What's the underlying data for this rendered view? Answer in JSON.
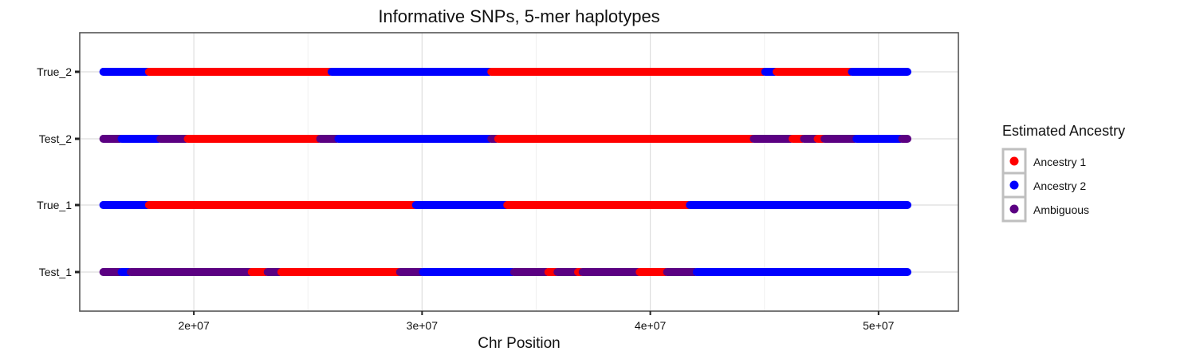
{
  "chart_data": {
    "type": "scatter",
    "title": "Informative SNPs, 5-mer haplotypes",
    "xlabel": "Chr Position",
    "ylabel": "",
    "xlim": [
      15000000,
      53500000
    ],
    "x_ticks": [
      20000000,
      30000000,
      40000000,
      50000000
    ],
    "x_tick_labels": [
      "2e+07",
      "3e+07",
      "4e+07",
      "5e+07"
    ],
    "categories": [
      "Test_1",
      "True_1",
      "Test_2",
      "True_2"
    ],
    "grid": true,
    "legend": {
      "title": "Estimated Ancestry",
      "placement": "right",
      "entries": [
        {
          "label": "Ancestry 1",
          "color": "#ff0000"
        },
        {
          "label": "Ancestry 2",
          "color": "#0000ff"
        },
        {
          "label": "Ambiguous",
          "color": "#5b0082"
        }
      ]
    },
    "series": [
      {
        "row": "True_2",
        "segments": [
          {
            "start": 16000000,
            "end": 18000000,
            "ancestry": "Ancestry 2"
          },
          {
            "start": 18000000,
            "end": 26000000,
            "ancestry": "Ancestry 1"
          },
          {
            "start": 26000000,
            "end": 33000000,
            "ancestry": "Ancestry 2"
          },
          {
            "start": 33000000,
            "end": 45000000,
            "ancestry": "Ancestry 1"
          },
          {
            "start": 45000000,
            "end": 45500000,
            "ancestry": "Ancestry 2"
          },
          {
            "start": 45500000,
            "end": 48800000,
            "ancestry": "Ancestry 1"
          },
          {
            "start": 48800000,
            "end": 51300000,
            "ancestry": "Ancestry 2"
          }
        ]
      },
      {
        "row": "Test_2",
        "segments": [
          {
            "start": 16000000,
            "end": 16800000,
            "ancestry": "Ambiguous"
          },
          {
            "start": 16800000,
            "end": 18500000,
            "ancestry": "Ancestry 2"
          },
          {
            "start": 18500000,
            "end": 19700000,
            "ancestry": "Ambiguous"
          },
          {
            "start": 19700000,
            "end": 25500000,
            "ancestry": "Ancestry 1"
          },
          {
            "start": 25500000,
            "end": 26300000,
            "ancestry": "Ambiguous"
          },
          {
            "start": 26300000,
            "end": 33000000,
            "ancestry": "Ancestry 2"
          },
          {
            "start": 33000000,
            "end": 33300000,
            "ancestry": "Ambiguous"
          },
          {
            "start": 33300000,
            "end": 44500000,
            "ancestry": "Ancestry 1"
          },
          {
            "start": 44500000,
            "end": 46200000,
            "ancestry": "Ambiguous"
          },
          {
            "start": 46200000,
            "end": 46700000,
            "ancestry": "Ancestry 1"
          },
          {
            "start": 46700000,
            "end": 47300000,
            "ancestry": "Ambiguous"
          },
          {
            "start": 47300000,
            "end": 47600000,
            "ancestry": "Ancestry 1"
          },
          {
            "start": 47600000,
            "end": 49000000,
            "ancestry": "Ambiguous"
          },
          {
            "start": 49000000,
            "end": 51000000,
            "ancestry": "Ancestry 2"
          },
          {
            "start": 51000000,
            "end": 51300000,
            "ancestry": "Ambiguous"
          }
        ]
      },
      {
        "row": "True_1",
        "segments": [
          {
            "start": 16000000,
            "end": 18000000,
            "ancestry": "Ancestry 2"
          },
          {
            "start": 18000000,
            "end": 29700000,
            "ancestry": "Ancestry 1"
          },
          {
            "start": 29700000,
            "end": 33700000,
            "ancestry": "Ancestry 2"
          },
          {
            "start": 33700000,
            "end": 41700000,
            "ancestry": "Ancestry 1"
          },
          {
            "start": 41700000,
            "end": 51300000,
            "ancestry": "Ancestry 2"
          }
        ]
      },
      {
        "row": "Test_1",
        "segments": [
          {
            "start": 16000000,
            "end": 16800000,
            "ancestry": "Ambiguous"
          },
          {
            "start": 16800000,
            "end": 17200000,
            "ancestry": "Ancestry 2"
          },
          {
            "start": 17200000,
            "end": 22500000,
            "ancestry": "Ambiguous"
          },
          {
            "start": 22500000,
            "end": 23200000,
            "ancestry": "Ancestry 1"
          },
          {
            "start": 23200000,
            "end": 23800000,
            "ancestry": "Ambiguous"
          },
          {
            "start": 23800000,
            "end": 29000000,
            "ancestry": "Ancestry 1"
          },
          {
            "start": 29000000,
            "end": 30000000,
            "ancestry": "Ambiguous"
          },
          {
            "start": 30000000,
            "end": 34000000,
            "ancestry": "Ancestry 2"
          },
          {
            "start": 34000000,
            "end": 35500000,
            "ancestry": "Ambiguous"
          },
          {
            "start": 35500000,
            "end": 35900000,
            "ancestry": "Ancestry 1"
          },
          {
            "start": 35900000,
            "end": 36800000,
            "ancestry": "Ambiguous"
          },
          {
            "start": 36800000,
            "end": 37000000,
            "ancestry": "Ancestry 1"
          },
          {
            "start": 37000000,
            "end": 39500000,
            "ancestry": "Ambiguous"
          },
          {
            "start": 39500000,
            "end": 40700000,
            "ancestry": "Ancestry 1"
          },
          {
            "start": 40700000,
            "end": 42000000,
            "ancestry": "Ambiguous"
          },
          {
            "start": 42000000,
            "end": 51300000,
            "ancestry": "Ancestry 2"
          }
        ]
      }
    ]
  }
}
